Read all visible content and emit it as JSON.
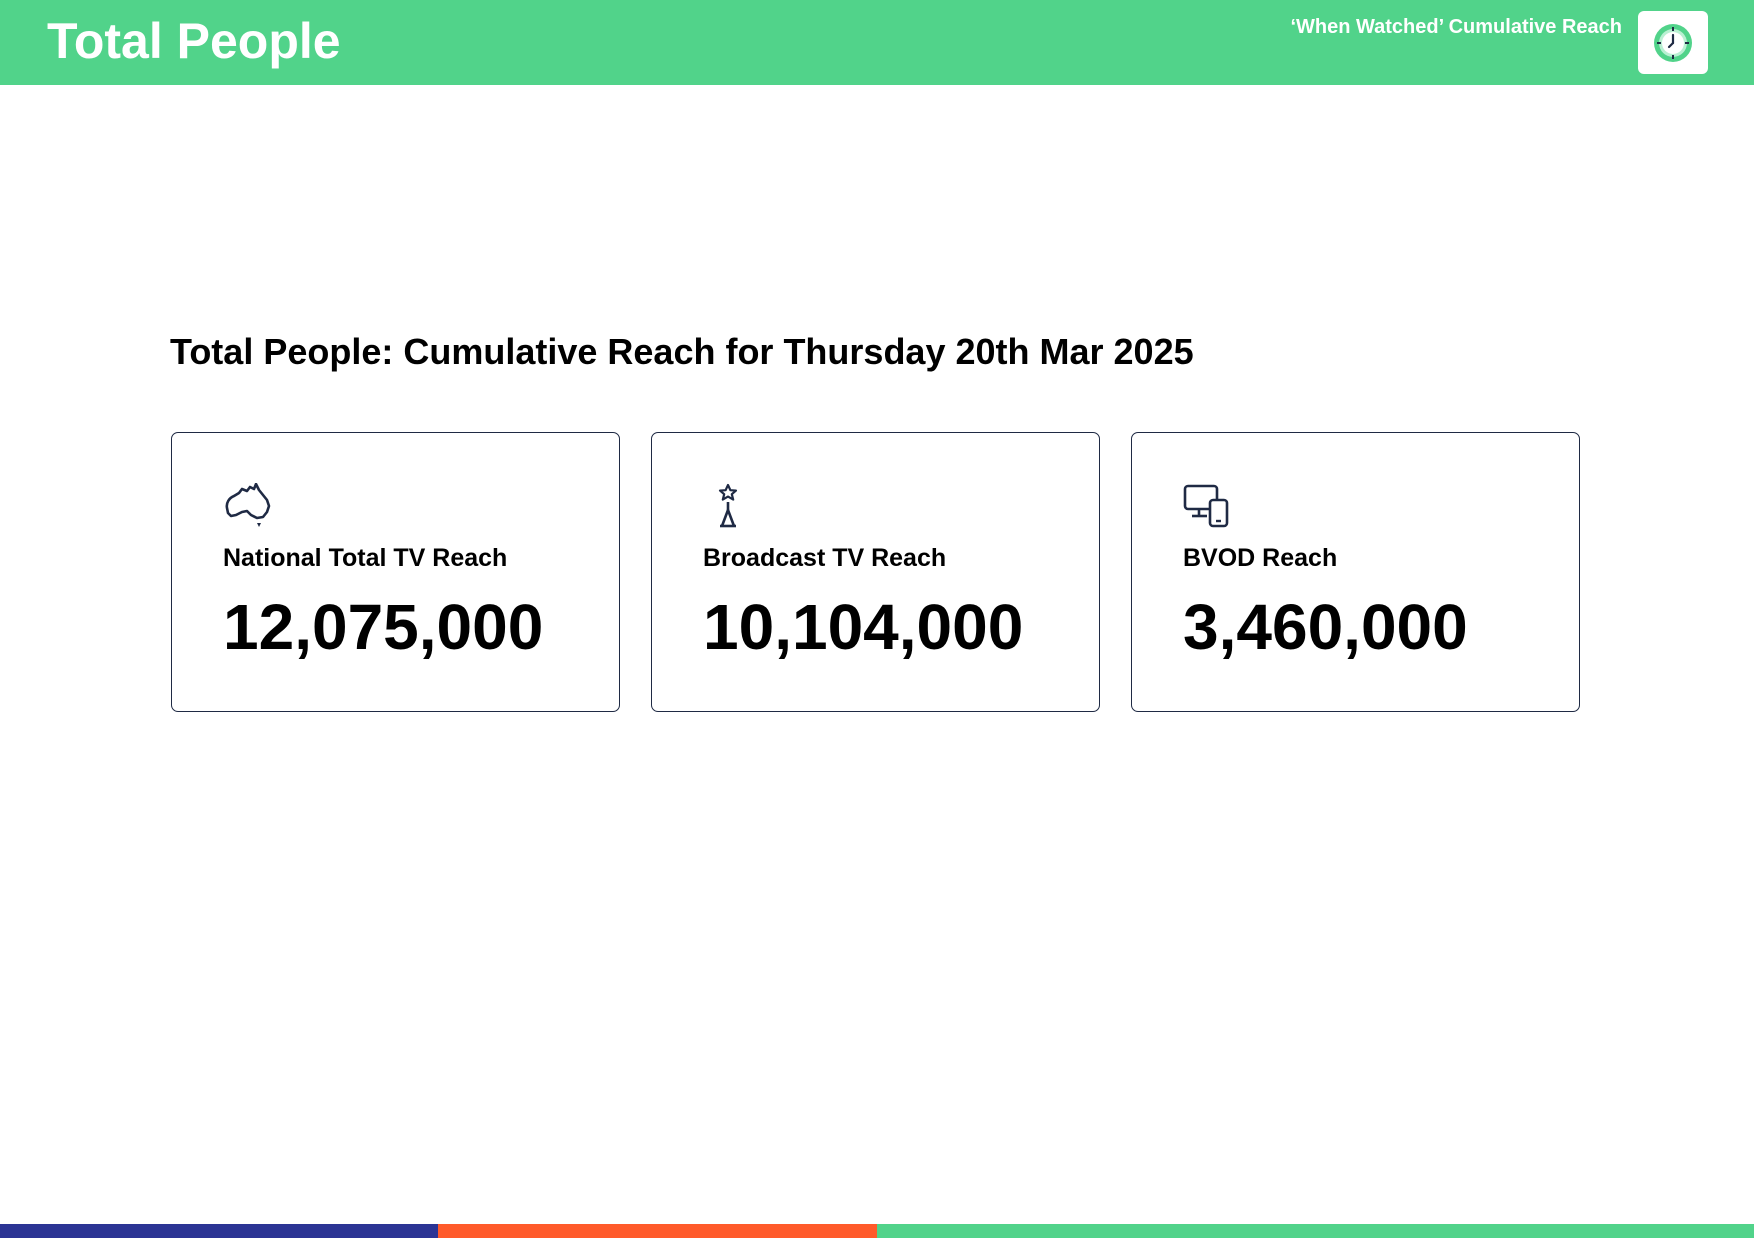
{
  "header": {
    "title": "Total People",
    "subtitle": "‘When Watched’ Cumulative Reach",
    "badge_icon": "clock-icon"
  },
  "heading": "Total People: Cumulative Reach for Thursday 20th Mar 2025",
  "cards": [
    {
      "icon": "australia-map-icon",
      "label": "National Total TV Reach",
      "value": "12,075,000"
    },
    {
      "icon": "broadcast-tower-icon",
      "label": "Broadcast TV Reach",
      "value": "10,104,000"
    },
    {
      "icon": "devices-icon",
      "label": "BVOD Reach",
      "value": "3,460,000"
    }
  ],
  "colors": {
    "header_green": "#51d38a",
    "text": "#000000",
    "card_border": "#1f2a44",
    "footer": [
      "#2b3494",
      "#ff5a2a",
      "#51d38a"
    ]
  }
}
